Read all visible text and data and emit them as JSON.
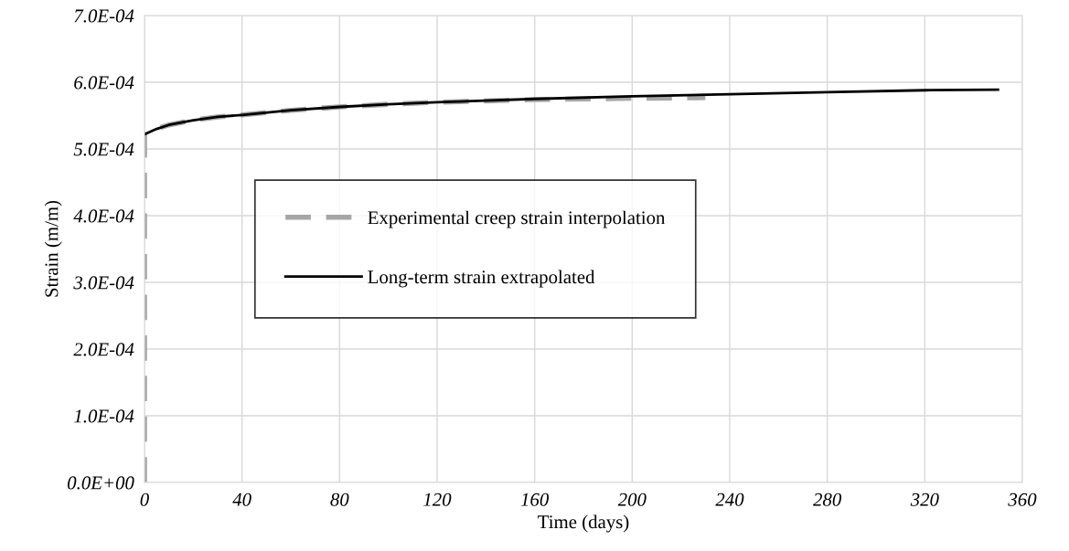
{
  "chart_data": {
    "type": "line",
    "xlabel": "Time (days)",
    "ylabel": "Strain (m/m)",
    "xlim": [
      0,
      360
    ],
    "xticks": [
      0,
      40,
      80,
      120,
      160,
      200,
      240,
      280,
      320,
      360
    ],
    "ylim": [
      0,
      0.0007
    ],
    "yticks": [
      {
        "value": 0,
        "label": "0.0E+00"
      },
      {
        "value": 0.0001,
        "label": "1.0E-04"
      },
      {
        "value": 0.0002,
        "label": "2.0E-04"
      },
      {
        "value": 0.0003,
        "label": "3.0E-04"
      },
      {
        "value": 0.0004,
        "label": "4.0E-04"
      },
      {
        "value": 0.0005,
        "label": "5.0E-04"
      },
      {
        "value": 0.0006,
        "label": "6.0E-04"
      },
      {
        "value": 0.0007,
        "label": "7.0E-04"
      }
    ],
    "grid": true,
    "legend": "left",
    "series": [
      {
        "name": "Experimental creep strain interpolation",
        "color": "#a6a6a6",
        "line_style": "dashed",
        "x": [
          0,
          0,
          5,
          10,
          20,
          30,
          40,
          60,
          80,
          100,
          120,
          140,
          160,
          180,
          200,
          230
        ],
        "values": [
          0,
          0.000522,
          0.00053,
          0.000536,
          0.000543,
          0.000548,
          0.000551,
          0.000558,
          0.000563,
          0.000567,
          0.00057,
          0.000572,
          0.000574,
          0.000575,
          0.000576,
          0.000577
        ]
      },
      {
        "name": "Long-term strain extrapolated",
        "color": "#000000",
        "line_style": "solid",
        "x": [
          0,
          5,
          10,
          20,
          30,
          40,
          60,
          80,
          100,
          120,
          160,
          200,
          240,
          280,
          320,
          350
        ],
        "values": [
          0.000522,
          0.00053,
          0.000536,
          0.000543,
          0.000548,
          0.000551,
          0.000558,
          0.000563,
          0.000567,
          0.00057,
          0.000575,
          0.000579,
          0.000582,
          0.000585,
          0.000588,
          0.000589
        ]
      }
    ]
  }
}
